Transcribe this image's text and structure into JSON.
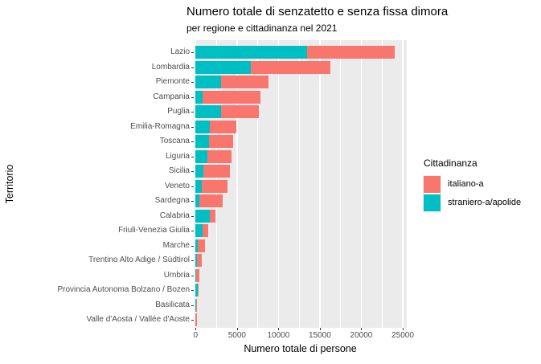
{
  "title": "Numero totale di senzatetto e senza fissa dimora",
  "subtitle": "per regione e cittadinanza nel 2021",
  "axes": {
    "y_title": "Territorio",
    "x_title": "Numero totale di persone",
    "x_ticks": [
      0,
      5000,
      10000,
      15000,
      20000,
      25000
    ],
    "minor_grid_step": 2500
  },
  "legend": {
    "title": "Cittadinanza",
    "items": [
      {
        "label": "italiano-a",
        "color": "#F8766D"
      },
      {
        "label": "straniero-a/apolide",
        "color": "#00BFC4"
      }
    ]
  },
  "colors": {
    "italiano": "#F8766D",
    "straniero": "#00BFC4",
    "panel_background": "#EBEBEB",
    "gridline": "#FFFFFF",
    "axis_text": "#4D4D4D",
    "tick_mark": "#333333"
  },
  "chart_data": {
    "type": "bar",
    "orientation": "horizontal",
    "stacked": true,
    "title": "Numero totale di senzatetto e senza fissa dimora",
    "subtitle": "per regione e cittadinanza nel 2021",
    "xlabel": "Numero totale di persone",
    "ylabel": "Territorio",
    "xlim": [
      0,
      25500
    ],
    "x_ticks": [
      0,
      5000,
      10000,
      15000,
      20000,
      25000
    ],
    "grid": "on",
    "legend_position": "right",
    "legend_title": "Cittadinanza",
    "categories": [
      "Lazio",
      "Lombardia",
      "Piemonte",
      "Campania",
      "Puglia",
      "Emilia-Romagna",
      "Toscana",
      "Liguria",
      "Sicilia",
      "Veneto",
      "Sardegna",
      "Calabria",
      "Friuli-Venezia Giulia",
      "Marche",
      "Trentino Alto Adige / Südtirol",
      "Umbria",
      "Provincia Autonoma Bolzano / Bozen",
      "Basilicata",
      "Valle d'Aosta / Vallée d'Aoste"
    ],
    "series": [
      {
        "name": "straniero-a/apolide",
        "color": "#00BFC4",
        "stack_position": "left",
        "values": [
          13500,
          6700,
          3100,
          800,
          3100,
          1750,
          1600,
          1450,
          950,
          750,
          500,
          1750,
          880,
          300,
          200,
          50,
          220,
          20,
          10
        ]
      },
      {
        "name": "italiano-a",
        "color": "#F8766D",
        "stack_position": "right",
        "values": [
          10500,
          9600,
          5700,
          7000,
          4550,
          3150,
          2900,
          2850,
          3150,
          3150,
          2750,
          650,
          670,
          800,
          500,
          450,
          180,
          130,
          130
        ]
      }
    ],
    "totals": [
      24000,
      16300,
      8800,
      7800,
      7650,
      4900,
      4500,
      4300,
      4100,
      3900,
      3250,
      2400,
      1550,
      1100,
      700,
      500,
      400,
      150,
      140
    ]
  }
}
